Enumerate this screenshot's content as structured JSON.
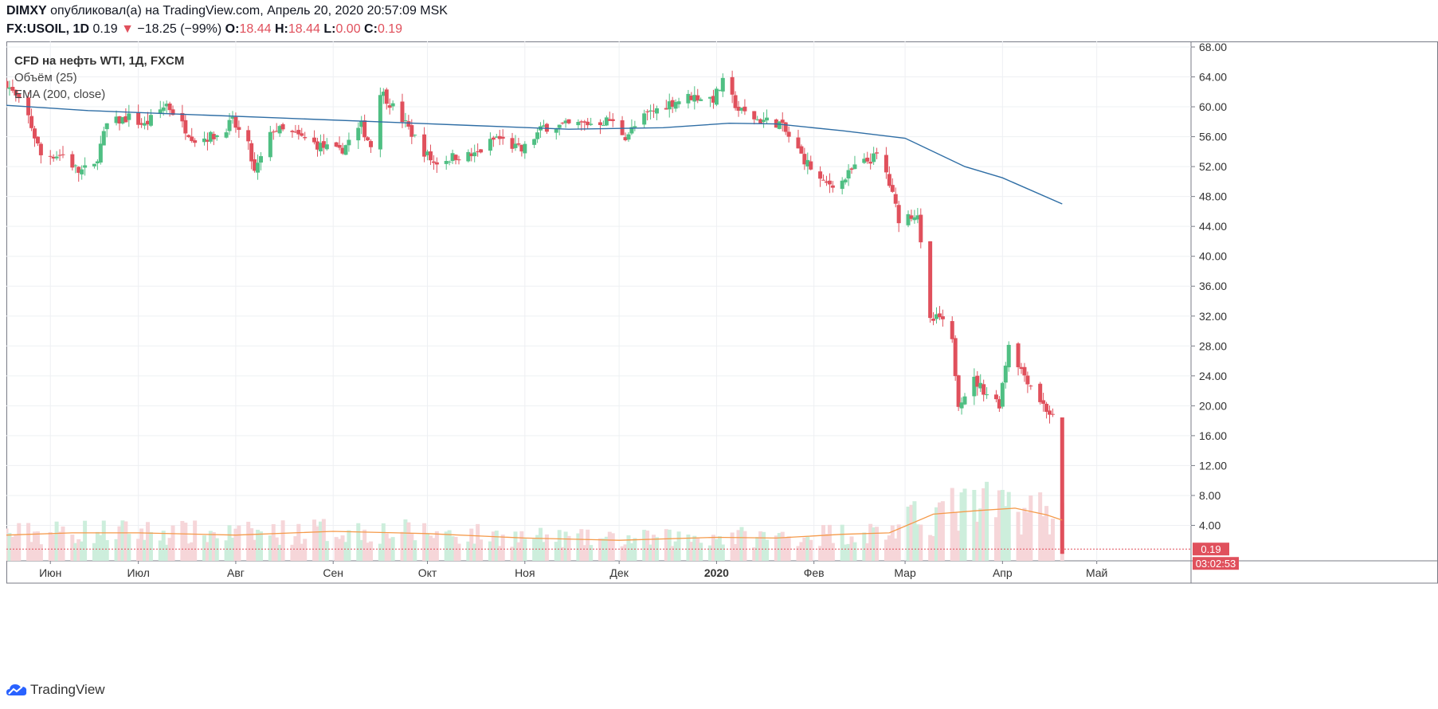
{
  "header": {
    "author": "DIMXY",
    "published_text": "опубликовал(а) на TradingView.com, Апрель 20, 2020 20:57:09 MSK",
    "symbol": "FX:USOIL, 1D",
    "last": "0.19",
    "change": "−18.25 (−99%)",
    "o_label": "O:",
    "o_value": "18.44",
    "h_label": "H:",
    "h_value": "18.44",
    "l_label": "L:",
    "l_value": "0.00",
    "c_label": "C:",
    "c_value": "0.19"
  },
  "legend": {
    "title": "CFD на нефть WTI, 1Д, FXCM",
    "volume": "Объём (25)",
    "ema": "EMA (200, close)"
  },
  "price_tag": "0.19",
  "timer_tag": "03:02:53",
  "footer": {
    "brand": "TradingView"
  },
  "colors": {
    "up": "#4fbf83",
    "down": "#e0505c",
    "ema": "#2f6ea5",
    "vol_ma": "#f59a4a",
    "vol_up": "#cdeedc",
    "vol_down": "#f6d6d9",
    "grid": "#eef0f3"
  },
  "chart_data": {
    "type": "candlestick",
    "y_axis": {
      "min": 0,
      "max": 68,
      "ticks": [
        "68.00",
        "64.00",
        "60.00",
        "56.00",
        "52.00",
        "48.00",
        "44.00",
        "40.00",
        "36.00",
        "32.00",
        "28.00",
        "24.00",
        "20.00",
        "16.00",
        "12.00",
        "8.00",
        "4.00"
      ]
    },
    "x_axis": {
      "start": "2019-05-20",
      "end": "2020-05-31",
      "ticks": [
        {
          "label": "Июн",
          "date": "2019-06-03"
        },
        {
          "label": "Июл",
          "date": "2019-07-01"
        },
        {
          "label": "Авг",
          "date": "2019-08-01"
        },
        {
          "label": "Сен",
          "date": "2019-09-01"
        },
        {
          "label": "Окт",
          "date": "2019-10-01"
        },
        {
          "label": "Ноя",
          "date": "2019-11-01"
        },
        {
          "label": "Дек",
          "date": "2019-12-01"
        },
        {
          "label": "2020",
          "date": "2020-01-01",
          "bold": true
        },
        {
          "label": "Фев",
          "date": "2020-02-01"
        },
        {
          "label": "Мар",
          "date": "2020-03-01"
        },
        {
          "label": "Апр",
          "date": "2020-04-01"
        },
        {
          "label": "Май",
          "date": "2020-05-01"
        }
      ]
    },
    "close_series": [
      [
        "2019-05-20",
        63.2
      ],
      [
        "2019-05-27",
        58.6
      ],
      [
        "2019-05-31",
        53.5
      ],
      [
        "2019-06-07",
        53.6
      ],
      [
        "2019-06-12",
        51.3
      ],
      [
        "2019-06-17",
        52.0
      ],
      [
        "2019-06-21",
        57.6
      ],
      [
        "2019-06-28",
        58.6
      ],
      [
        "2019-07-03",
        57.5
      ],
      [
        "2019-07-10",
        60.4
      ],
      [
        "2019-07-15",
        57.6
      ],
      [
        "2019-07-19",
        55.6
      ],
      [
        "2019-07-26",
        56.2
      ],
      [
        "2019-07-31",
        58.0
      ],
      [
        "2019-08-05",
        54.7
      ],
      [
        "2019-08-07",
        51.1
      ],
      [
        "2019-08-13",
        57.1
      ],
      [
        "2019-08-20",
        56.2
      ],
      [
        "2019-08-27",
        54.9
      ],
      [
        "2019-09-03",
        53.9
      ],
      [
        "2019-09-10",
        57.4
      ],
      [
        "2019-09-13",
        54.8
      ],
      [
        "2019-09-16",
        62.2
      ],
      [
        "2019-09-23",
        58.3
      ],
      [
        "2019-09-30",
        54.0
      ],
      [
        "2019-10-03",
        52.5
      ],
      [
        "2019-10-10",
        53.4
      ],
      [
        "2019-10-16",
        53.5
      ],
      [
        "2019-10-23",
        55.9
      ],
      [
        "2019-10-31",
        54.1
      ],
      [
        "2019-11-07",
        57.3
      ],
      [
        "2019-11-15",
        57.5
      ],
      [
        "2019-11-22",
        57.8
      ],
      [
        "2019-11-28",
        58.2
      ],
      [
        "2019-12-03",
        56.1
      ],
      [
        "2019-12-10",
        59.0
      ],
      [
        "2019-12-17",
        60.5
      ],
      [
        "2019-12-24",
        61.4
      ],
      [
        "2019-12-31",
        61.1
      ],
      [
        "2020-01-03",
        63.2
      ],
      [
        "2020-01-08",
        59.6
      ],
      [
        "2020-01-14",
        58.3
      ],
      [
        "2020-01-21",
        57.8
      ],
      [
        "2020-01-28",
        53.5
      ],
      [
        "2020-02-04",
        49.6
      ],
      [
        "2020-02-10",
        50.0
      ],
      [
        "2020-02-14",
        51.9
      ],
      [
        "2020-02-21",
        53.4
      ],
      [
        "2020-02-24",
        51.1
      ],
      [
        "2020-02-28",
        45.1
      ],
      [
        "2020-03-05",
        45.8
      ],
      [
        "2020-03-06",
        41.3
      ],
      [
        "2020-03-09",
        31.2
      ],
      [
        "2020-03-12",
        31.8
      ],
      [
        "2020-03-16",
        28.4
      ],
      [
        "2020-03-18",
        20.5
      ],
      [
        "2020-03-23",
        23.4
      ],
      [
        "2020-03-27",
        21.7
      ],
      [
        "2020-03-31",
        20.3
      ],
      [
        "2020-04-03",
        28.4
      ],
      [
        "2020-04-07",
        24.8
      ],
      [
        "2020-04-09",
        23.5
      ],
      [
        "2020-04-14",
        20.1
      ],
      [
        "2020-04-17",
        18.4
      ],
      [
        "2020-04-20",
        0.19
      ]
    ],
    "ema_200": [
      [
        "2019-05-20",
        60.2
      ],
      [
        "2019-06-15",
        59.5
      ],
      [
        "2019-07-15",
        59.0
      ],
      [
        "2019-08-15",
        58.5
      ],
      [
        "2019-09-15",
        58.0
      ],
      [
        "2019-10-15",
        57.5
      ],
      [
        "2019-11-15",
        57.0
      ],
      [
        "2019-12-15",
        57.2
      ],
      [
        "2020-01-05",
        57.8
      ],
      [
        "2020-01-20",
        57.7
      ],
      [
        "2020-02-10",
        56.8
      ],
      [
        "2020-03-01",
        55.8
      ],
      [
        "2020-03-20",
        52.0
      ],
      [
        "2020-04-01",
        50.5
      ],
      [
        "2020-04-20",
        47.0
      ]
    ],
    "volume_ma_25": [
      [
        "2019-05-20",
        2.7
      ],
      [
        "2019-06-10",
        3.0
      ],
      [
        "2019-07-01",
        3.0
      ],
      [
        "2019-08-01",
        2.7
      ],
      [
        "2019-09-01",
        3.2
      ],
      [
        "2019-10-01",
        2.9
      ],
      [
        "2019-11-01",
        2.3
      ],
      [
        "2019-12-01",
        2.0
      ],
      [
        "2020-01-01",
        2.4
      ],
      [
        "2020-01-20",
        2.3
      ],
      [
        "2020-02-10",
        2.8
      ],
      [
        "2020-02-25",
        3.0
      ],
      [
        "2020-03-10",
        5.5
      ],
      [
        "2020-03-25",
        6.0
      ],
      [
        "2020-04-05",
        6.3
      ],
      [
        "2020-04-15",
        5.4
      ],
      [
        "2020-04-20",
        4.7
      ]
    ]
  }
}
